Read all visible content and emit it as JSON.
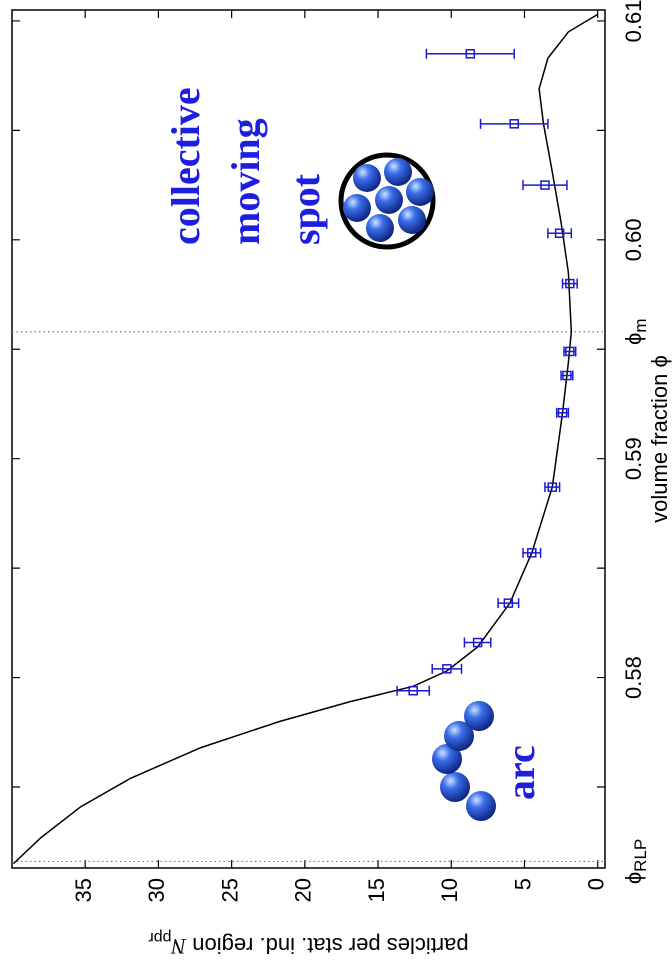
{
  "chart_data": {
    "type": "scatter",
    "xlabel": "volume fraction ϕ",
    "ylabel": {
      "text": "particles per stat. ind. region ",
      "symbol": "N",
      "sub": "ppr"
    },
    "x": [
      0.6085,
      0.6053,
      0.6025,
      0.6003,
      0.598,
      0.5949,
      0.5938,
      0.5921,
      0.5887,
      0.5857,
      0.5834,
      0.5816,
      0.5804,
      0.5794
    ],
    "values": [
      8.7,
      5.7,
      3.6,
      2.6,
      1.9,
      1.9,
      2.1,
      2.4,
      3.1,
      4.5,
      6.1,
      8.2,
      10.3,
      12.6
    ],
    "errors": [
      3.0,
      2.3,
      1.5,
      0.8,
      0.5,
      0.4,
      0.4,
      0.4,
      0.5,
      0.6,
      0.7,
      0.9,
      1.0,
      1.1
    ],
    "color": "#1a1ad0",
    "curve": {
      "color": "#000000",
      "x": [
        0.5715,
        0.5727,
        0.5741,
        0.5754,
        0.5768,
        0.578,
        0.5789,
        0.5796,
        0.5803,
        0.5814,
        0.5834,
        0.5857,
        0.5887,
        0.5921,
        0.5944,
        0.5958,
        0.5985,
        0.6008,
        0.6031,
        0.6053,
        0.6069,
        0.6083,
        0.6095,
        0.6103
      ],
      "values": [
        39.9,
        38.0,
        35.3,
        31.9,
        27.1,
        21.7,
        16.9,
        12.6,
        10.3,
        8.2,
        6.0,
        4.5,
        3.1,
        2.4,
        2.0,
        1.8,
        2.0,
        2.5,
        3.1,
        3.7,
        4.0,
        3.4,
        2.0,
        0
      ]
    },
    "xlim": [
      0.5713,
      0.6105
    ],
    "xticks": [
      0.58,
      0.59,
      {
        "value": 0.6,
        "label": "0.60"
      },
      0.61
    ],
    "xminorticks": [
      0.575,
      0.585,
      0.595,
      0.605
    ],
    "ylim": [
      -0.5,
      40
    ],
    "yticks": [
      0,
      5,
      10,
      15,
      20,
      25,
      30,
      35
    ],
    "vlines": [
      {
        "value": 0.5716,
        "symbol": "ϕ",
        "sub": "RLP"
      },
      {
        "value": 0.5958,
        "symbol": "ϕ",
        "sub": "m"
      }
    ],
    "annotations": [
      "collective",
      "moving",
      "spot",
      "arc"
    ],
    "grid": false
  }
}
